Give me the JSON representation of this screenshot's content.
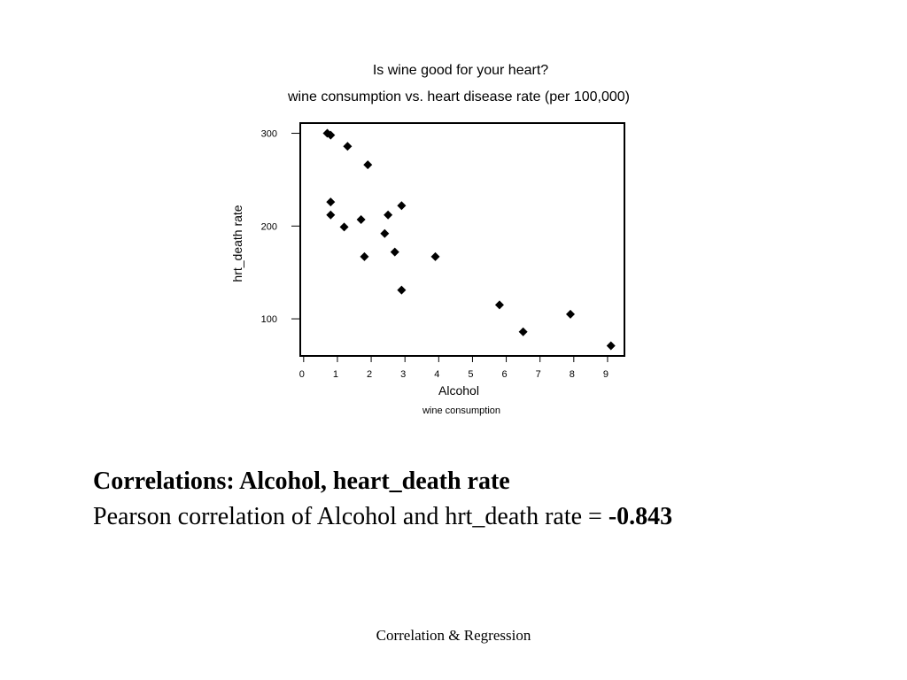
{
  "chart_data": {
    "type": "scatter",
    "title": "Is wine good for your heart?",
    "subtitle": "wine consumption vs. heart disease rate (per 100,000)",
    "xlabel": "Alcohol",
    "xsublabel": "wine consumption",
    "ylabel": "hrt_death rate",
    "xlim": [
      -0.1,
      9.5
    ],
    "ylim": [
      60,
      311
    ],
    "xticks": [
      0,
      1,
      2,
      3,
      4,
      5,
      6,
      7,
      8,
      9
    ],
    "yticks": [
      100,
      200,
      300
    ],
    "grid": false,
    "points": [
      {
        "x": 0.7,
        "y": 300
      },
      {
        "x": 0.8,
        "y": 298
      },
      {
        "x": 1.3,
        "y": 286
      },
      {
        "x": 1.9,
        "y": 266
      },
      {
        "x": 0.8,
        "y": 226
      },
      {
        "x": 2.9,
        "y": 222
      },
      {
        "x": 0.8,
        "y": 212
      },
      {
        "x": 2.5,
        "y": 212
      },
      {
        "x": 1.7,
        "y": 207
      },
      {
        "x": 1.2,
        "y": 199
      },
      {
        "x": 2.4,
        "y": 192
      },
      {
        "x": 2.7,
        "y": 172
      },
      {
        "x": 1.8,
        "y": 167
      },
      {
        "x": 3.9,
        "y": 167
      },
      {
        "x": 2.9,
        "y": 131
      },
      {
        "x": 5.8,
        "y": 115
      },
      {
        "x": 7.9,
        "y": 105
      },
      {
        "x": 6.5,
        "y": 86
      },
      {
        "x": 9.1,
        "y": 71
      }
    ]
  },
  "correlation": {
    "heading": "Correlations: Alcohol, heart_death rate",
    "text": "Pearson correlation of Alcohol and hrt_death rate = ",
    "value": "-0.843"
  },
  "footer": "Correlation & Regression"
}
